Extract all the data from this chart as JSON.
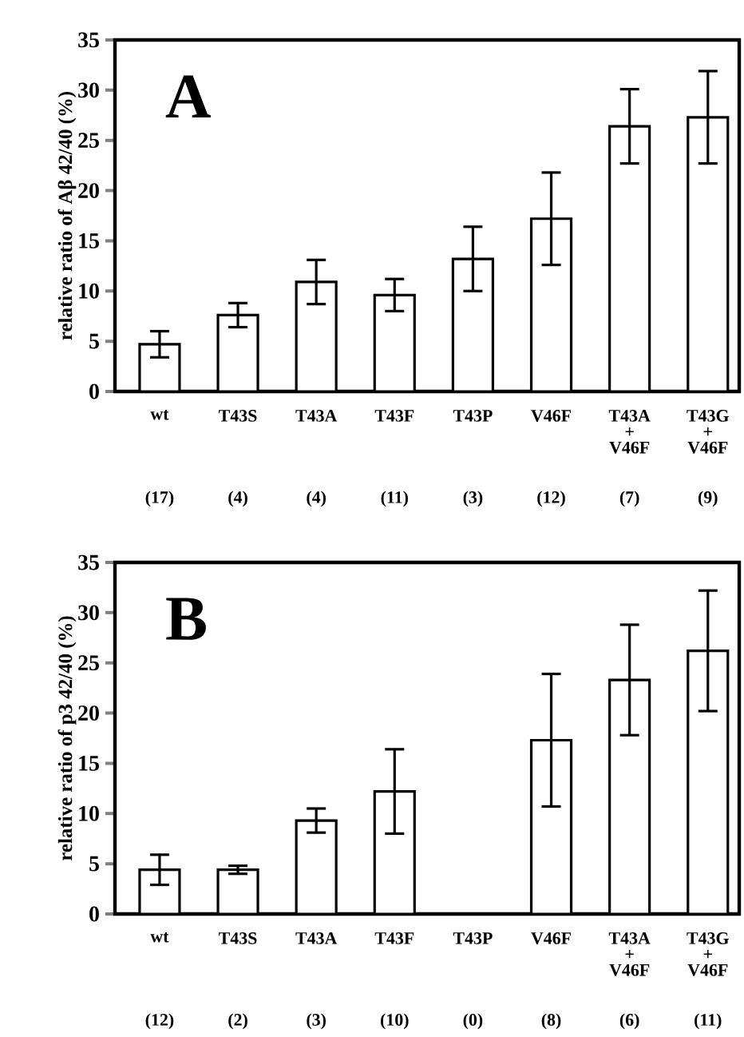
{
  "chart_data": [
    {
      "type": "bar",
      "title": "A",
      "ylabel": "relative ratio of Aβ 42/40 (%)",
      "categories": [
        "wt",
        "T43S",
        "T43A",
        "T43F",
        "T43P",
        "V46F",
        "T43A + V46F",
        "T43G + V46F"
      ],
      "values": [
        4.7,
        7.6,
        10.9,
        9.6,
        13.2,
        17.2,
        26.4,
        27.3
      ],
      "errors": [
        1.3,
        1.2,
        2.2,
        1.6,
        3.2,
        4.6,
        3.7,
        4.6
      ],
      "color": "#000000",
      "ylim": [
        0,
        35
      ],
      "yticks": [
        0,
        5,
        10,
        15,
        20,
        25,
        30,
        35
      ],
      "annotations": [
        "(17)",
        "(4)",
        "(4)",
        "(11)",
        "(3)",
        "(12)",
        "(7)",
        "(9)"
      ]
    },
    {
      "type": "bar",
      "title": "B",
      "ylabel": "relative ratio of p3 42/40 (%)",
      "categories": [
        "wt",
        "T43S",
        "T43A",
        "T43F",
        "T43P",
        "V46F",
        "T43A + V46F",
        "T43G + V46F"
      ],
      "values": [
        4.4,
        4.4,
        9.3,
        12.2,
        null,
        17.3,
        23.3,
        26.2
      ],
      "errors": [
        1.5,
        0.4,
        1.2,
        4.2,
        null,
        6.6,
        5.5,
        6.0
      ],
      "color": "#000000",
      "ylim": [
        0,
        35
      ],
      "yticks": [
        0,
        5,
        10,
        15,
        20,
        25,
        30,
        35
      ],
      "annotations": [
        "(12)",
        "(2)",
        "(3)",
        "(10)",
        "(0)",
        "(8)",
        "(6)",
        "(11)"
      ]
    }
  ]
}
